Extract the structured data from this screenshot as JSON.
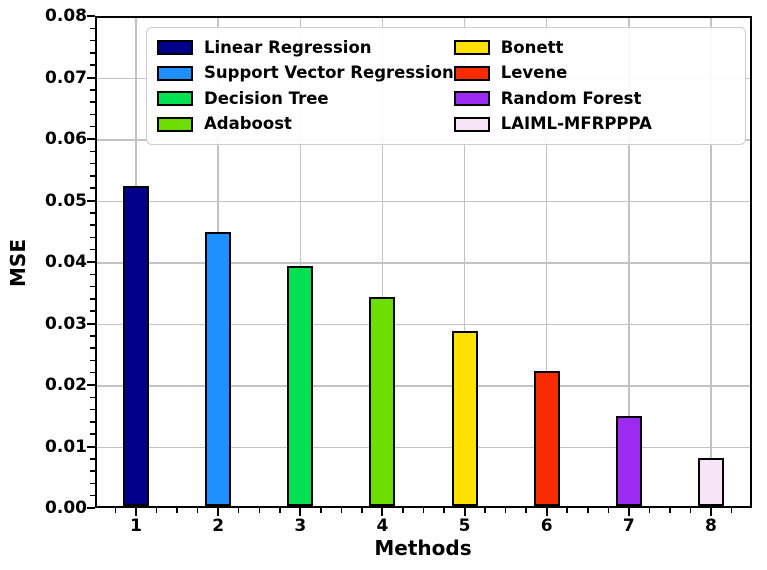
{
  "chart_data": {
    "type": "bar",
    "title": "",
    "xlabel": "Methods",
    "ylabel": "MSE",
    "categories": [
      "1",
      "2",
      "3",
      "4",
      "5",
      "6",
      "7",
      "8"
    ],
    "values": [
      0.052,
      0.0445,
      0.039,
      0.034,
      0.0285,
      0.022,
      0.0147,
      0.0078
    ],
    "bar_colors": [
      "#00008B",
      "#1E90FF",
      "#00E050",
      "#6CDF00",
      "#FFE100",
      "#F92C00",
      "#9B2BF0",
      "#F7E4F7"
    ],
    "ylim": [
      0,
      0.08
    ],
    "ytick_step": 0.01,
    "ytick_labels": [
      "0.00",
      "0.01",
      "0.02",
      "0.03",
      "0.04",
      "0.05",
      "0.06",
      "0.07",
      "0.08"
    ],
    "y_minor_step": 0.002,
    "grid": true,
    "legend": {
      "position": "upper center",
      "columns": 2,
      "entries": [
        {
          "label": "Linear Regression",
          "color": "#00008B"
        },
        {
          "label": "Support Vector Regression",
          "color": "#1E90FF"
        },
        {
          "label": "Decision Tree",
          "color": "#00E050"
        },
        {
          "label": "Adaboost",
          "color": "#6CDF00"
        },
        {
          "label": "Bonett",
          "color": "#FFE100"
        },
        {
          "label": "Levene",
          "color": "#F92C00"
        },
        {
          "label": "Random Forest",
          "color": "#9B2BF0"
        },
        {
          "label": "LAIML-MFRPPPA",
          "color": "#F7E4F7"
        }
      ]
    }
  },
  "colors": {
    "grid": "#c3c3c3",
    "axis": "#000000",
    "bar_edge": "#000000",
    "legend_border": "#cccccc",
    "background": "#ffffff"
  }
}
